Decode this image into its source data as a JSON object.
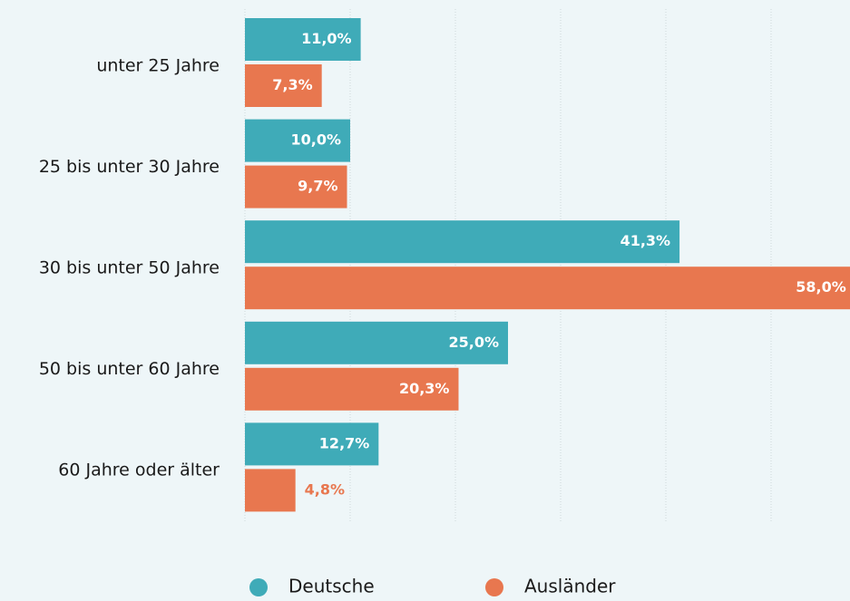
{
  "chart_data": {
    "type": "bar",
    "orientation": "horizontal",
    "categories": [
      "unter 25 Jahre",
      "25 bis unter 30 Jahre",
      "30 bis unter 50 Jahre",
      "50 bis unter 60 Jahre",
      "60 Jahre oder älter"
    ],
    "series": [
      {
        "name": "Deutsche",
        "color": "#3fabb8",
        "values": [
          11.0,
          10.0,
          41.3,
          25.0,
          12.7
        ],
        "value_labels": [
          "11,0%",
          "10,0%",
          "41,3%",
          "25,0%",
          "12,7%"
        ]
      },
      {
        "name": "Ausländer",
        "color": "#e8774f",
        "values": [
          7.3,
          9.7,
          58.0,
          20.3,
          4.8
        ],
        "value_labels": [
          "7,3%",
          "9,7%",
          "58,0%",
          "20,3%",
          "4,8%"
        ]
      }
    ],
    "xlim": [
      0,
      57.5
    ],
    "xticks": [
      0,
      10,
      20,
      30,
      40,
      50
    ],
    "grid": true,
    "legend": "bottom"
  }
}
